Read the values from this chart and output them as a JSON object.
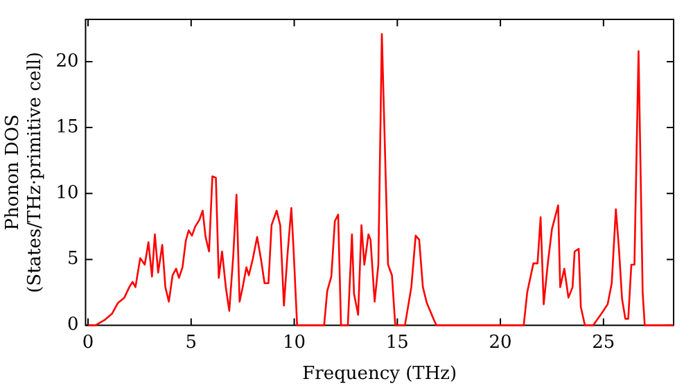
{
  "chart_data": {
    "type": "line",
    "xlabel": "Frequency (THz)",
    "ylabel": "Phonon DOS\n(States/THz·primitive cell)",
    "x": [
      0,
      0.35,
      0.8,
      1.17,
      1.45,
      1.76,
      2.0,
      2.16,
      2.3,
      2.53,
      2.75,
      2.93,
      3.1,
      3.24,
      3.4,
      3.6,
      3.75,
      3.92,
      4.1,
      4.27,
      4.41,
      4.58,
      4.74,
      4.88,
      5.04,
      5.2,
      5.4,
      5.56,
      5.7,
      5.87,
      6.03,
      6.2,
      6.34,
      6.5,
      6.69,
      6.85,
      7.04,
      7.2,
      7.35,
      7.5,
      7.68,
      7.8,
      8.0,
      8.2,
      8.4,
      8.56,
      8.75,
      8.9,
      9.15,
      9.32,
      9.5,
      9.67,
      9.86,
      9.97,
      10.14,
      11.45,
      11.6,
      11.8,
      11.97,
      12.13,
      12.27,
      12.6,
      12.8,
      12.9,
      13.1,
      13.26,
      13.4,
      13.6,
      13.7,
      13.9,
      14.08,
      14.25,
      14.55,
      14.74,
      14.9,
      15.37,
      15.68,
      15.89,
      16.06,
      16.24,
      16.43,
      16.78,
      16.9,
      21.13,
      21.3,
      21.6,
      21.8,
      21.95,
      22.1,
      22.3,
      22.5,
      22.8,
      22.9,
      23.1,
      23.3,
      23.5,
      23.6,
      23.8,
      23.9,
      24.1,
      24.5,
      24.95,
      25.2,
      25.4,
      25.6,
      25.75,
      25.9,
      26.06,
      26.2,
      26.35,
      26.5,
      26.7,
      26.9,
      27.0,
      28.4
    ],
    "series": [
      {
        "color": "#ff0000",
        "values": [
          0,
          0,
          0.4,
          0.9,
          1.7,
          2.1,
          2.9,
          3.3,
          2.9,
          5.1,
          4.6,
          6.3,
          3.7,
          6.9,
          4.0,
          6.1,
          2.9,
          1.8,
          3.8,
          4.3,
          3.6,
          4.4,
          6.4,
          7.2,
          6.8,
          7.5,
          8.0,
          8.7,
          6.7,
          5.6,
          11.3,
          11.2,
          3.6,
          5.6,
          2.8,
          1.1,
          5.2,
          9.9,
          1.8,
          2.9,
          4.4,
          3.8,
          5.1,
          6.7,
          4.9,
          3.2,
          3.2,
          7.6,
          8.7,
          7.6,
          1.5,
          5.3,
          8.9,
          5.7,
          0,
          0,
          2.6,
          3.7,
          7.9,
          8.4,
          0,
          0,
          6.9,
          2.4,
          0.8,
          7.6,
          4.6,
          6.9,
          6.5,
          1.8,
          4.6,
          22.1,
          4.6,
          3.8,
          0,
          0,
          2.9,
          6.8,
          6.5,
          2.9,
          1.7,
          0.4,
          0,
          0,
          2.5,
          4.7,
          4.7,
          8.2,
          1.6,
          4.7,
          7.3,
          9.1,
          2.9,
          4.3,
          2.1,
          2.9,
          5.6,
          5.8,
          1.4,
          0,
          0,
          1.0,
          1.6,
          3.2,
          8.8,
          5.8,
          2.0,
          0.5,
          0.5,
          4.6,
          4.6,
          20.8,
          2.5,
          0,
          0
        ]
      }
    ],
    "xlim": [
      -0.12,
      28.4
    ],
    "ylim": [
      0,
      23.2
    ],
    "xticks": [
      0,
      5,
      10,
      15,
      20,
      25
    ],
    "yticks": [
      0,
      5,
      10,
      15,
      20
    ],
    "grid": false,
    "legend": false,
    "marker": "none",
    "line_style": "solid"
  }
}
